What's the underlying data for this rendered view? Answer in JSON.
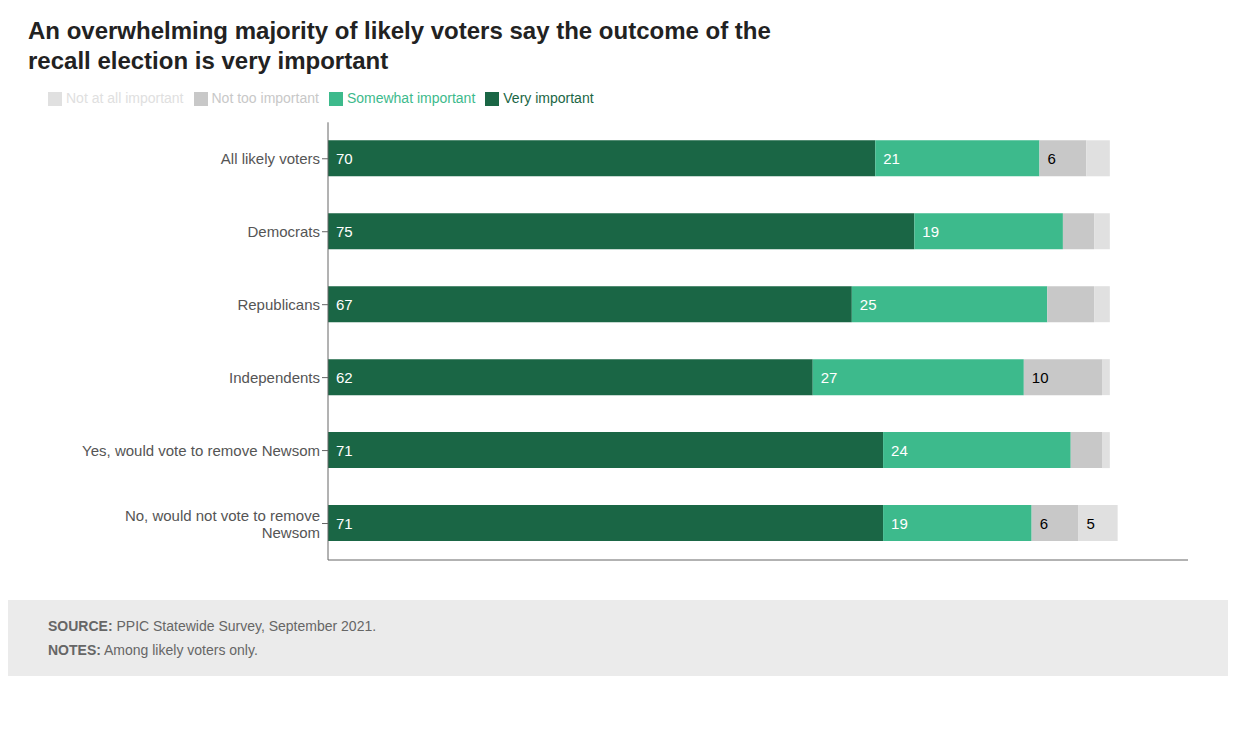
{
  "chart_data": {
    "type": "bar",
    "orientation": "horizontal",
    "stacked": true,
    "title": "An overwhelming majority of likely voters say the outcome of the\nrecall election is very important",
    "categories": [
      "All likely voters",
      "Democrats",
      "Republicans",
      "Independents",
      "Yes, would vote to remove Newsom",
      "No, would not vote to remove\nNewsom"
    ],
    "series": [
      {
        "name": "Very important",
        "color": "#1a6645",
        "values": [
          70,
          75,
          67,
          62,
          71,
          71
        ],
        "value_labels": [
          "70",
          "75",
          "67",
          "62",
          "71",
          "71"
        ]
      },
      {
        "name": "Somewhat important",
        "color": "#3dba8c",
        "values": [
          21,
          19,
          25,
          27,
          24,
          19
        ],
        "value_labels": [
          "21",
          "19",
          "25",
          "27",
          "24",
          "19"
        ]
      },
      {
        "name": "Not too important",
        "color": "#c8c8c8",
        "values": [
          6,
          4,
          6,
          10,
          4,
          6
        ],
        "value_labels": [
          "6",
          null,
          null,
          "10",
          null,
          "6"
        ]
      },
      {
        "name": "Not at all important",
        "color": "#e0e0e0",
        "values": [
          3,
          2,
          2,
          1,
          1,
          5
        ],
        "value_labels": [
          null,
          null,
          null,
          null,
          null,
          "5"
        ]
      }
    ],
    "xlim": [
      0,
      110
    ],
    "tick_labels": "y",
    "data_labels": true,
    "legend": "top left",
    "annotations": [
      {
        "label": "SOURCE:",
        "text": "PPIC Statewide Survey, September 2021."
      },
      {
        "label": "NOTES:",
        "text": "Among likely voters only."
      }
    ]
  }
}
